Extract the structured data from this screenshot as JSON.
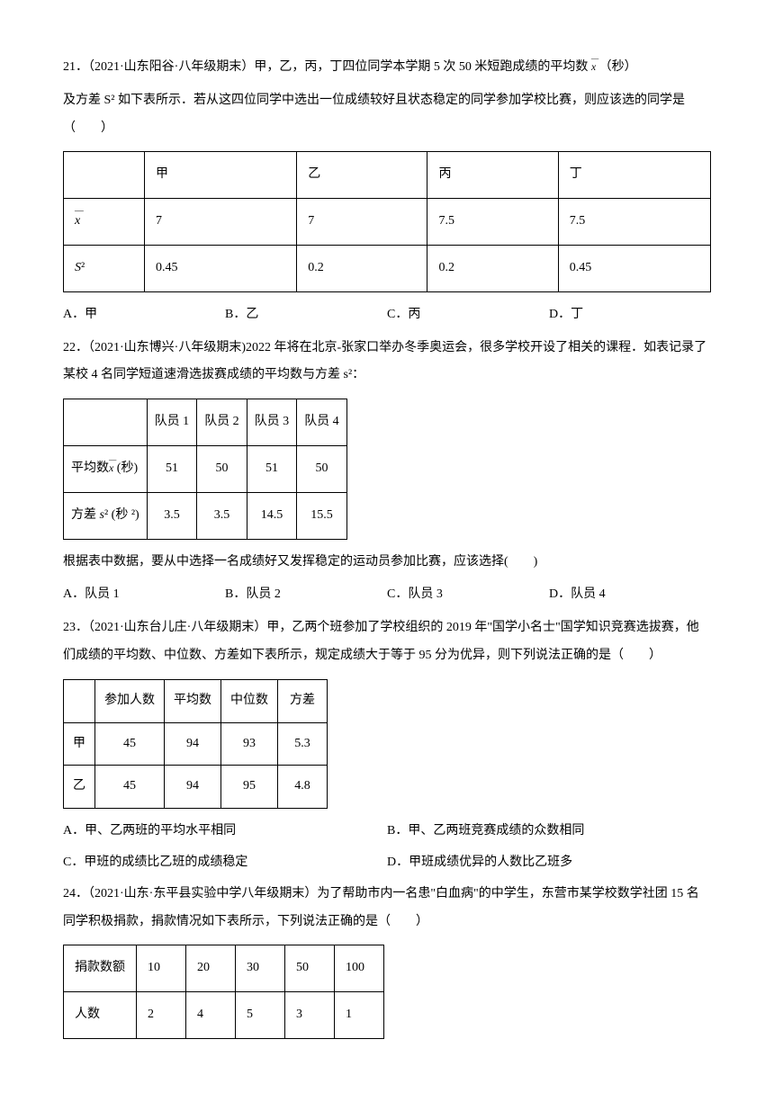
{
  "q21": {
    "text1": "21．（2021·山东阳谷·八年级期末）甲，乙，丙，丁四位同学本学期 5 次 50 米短跑成绩的平均数",
    "text2": "（秒）",
    "text3": "及方差 S² 如下表所示．若从这四位同学中选出一位成绩较好且状态稳定的同学参加学校比赛，则应该选的同学是（　　）",
    "table": {
      "headers": [
        "",
        "甲",
        "乙",
        "丙",
        "丁"
      ],
      "row1_label": "x",
      "row1": [
        "7",
        "7",
        "7.5",
        "7.5"
      ],
      "row2_label": "S²",
      "row2": [
        "0.45",
        "0.2",
        "0.2",
        "0.45"
      ]
    },
    "options": {
      "a": "A．甲",
      "b": "B．乙",
      "c": "C．丙",
      "d": "D．丁"
    }
  },
  "q22": {
    "text1": "22．（2021·山东博兴·八年级期末)2022 年将在北京-张家口举办冬季奥运会，很多学校开设了相关的课程．如表记录了某校 4 名同学短道速滑选拔赛成绩的平均数与方差 s²：",
    "table": {
      "headers": [
        "",
        "队员 1",
        "队员 2",
        "队员 3",
        "队员 4"
      ],
      "row1_label": "平均数",
      "row1_unit": "(秒)",
      "row1": [
        "51",
        "50",
        "51",
        "50"
      ],
      "row2_label": "方差",
      "row2_unit": "(秒 ²)",
      "row2": [
        "3.5",
        "3.5",
        "14.5",
        "15.5"
      ]
    },
    "text2": "根据表中数据，要从中选择一名成绩好又发挥稳定的运动员参加比赛，应该选择(　　)",
    "options": {
      "a": "A．队员 1",
      "b": "B．队员 2",
      "c": "C．队员 3",
      "d": "D．队员 4"
    }
  },
  "q23": {
    "text1": "23．（2021·山东台儿庄·八年级期末）甲，乙两个班参加了学校组织的 2019 年\"国学小名士\"国学知识竞赛选拔赛，他们成绩的平均数、中位数、方差如下表所示，规定成绩大于等于 95 分为优异，则下列说法正确的是（　　）",
    "table": {
      "headers": [
        "",
        "参加人数",
        "平均数",
        "中位数",
        "方差"
      ],
      "row1": [
        "甲",
        "45",
        "94",
        "93",
        "5.3"
      ],
      "row2": [
        "乙",
        "45",
        "94",
        "95",
        "4.8"
      ]
    },
    "options": {
      "a": "A．甲、乙两班的平均水平相同",
      "b": "B．甲、乙两班竞赛成绩的众数相同",
      "c": "C．甲班的成绩比乙班的成绩稳定",
      "d": "D．甲班成绩优异的人数比乙班多"
    }
  },
  "q24": {
    "text1": "24．（2021·山东·东平县实验中学八年级期末）为了帮助市内一名患\"白血病\"的中学生，东营市某学校数学社团 15 名同学积极捐款，捐款情况如下表所示，下列说法正确的是（　　）",
    "table": {
      "headers": [
        "捐款数额",
        "10",
        "20",
        "30",
        "50",
        "100"
      ],
      "row1": [
        "人数",
        "2",
        "4",
        "5",
        "3",
        "1"
      ]
    }
  }
}
